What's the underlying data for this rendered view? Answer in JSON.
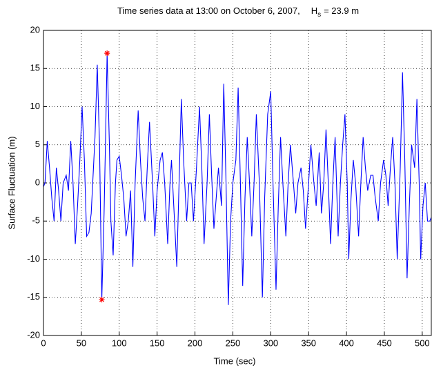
{
  "chart_data": {
    "type": "line",
    "title_main": "Time series data at 13:00 on October 6, 2007,",
    "title_symbol": "H",
    "title_subscript": "s",
    "title_value": "= 23.9 m",
    "x_label": "Time   (sec)",
    "y_label": "Surface Fluctuation   (m)",
    "xlim": [
      0,
      512
    ],
    "ylim": [
      -20,
      20
    ],
    "xticks": [
      0,
      50,
      100,
      150,
      200,
      250,
      300,
      350,
      400,
      450,
      500
    ],
    "yticks": [
      -20,
      -15,
      -10,
      -5,
      0,
      5,
      10,
      15,
      20
    ],
    "grid": true,
    "x": [
      0,
      2,
      5,
      8,
      11,
      14,
      17,
      20,
      23,
      26,
      30,
      33,
      36,
      39,
      42,
      45,
      48,
      51,
      54,
      57,
      60,
      63,
      66,
      68,
      71,
      74,
      77,
      80,
      82,
      84,
      87,
      89,
      92,
      95,
      97,
      100,
      103,
      106,
      109,
      112,
      115,
      118,
      121,
      125,
      128,
      131,
      134,
      137,
      140,
      144,
      147,
      150,
      154,
      157,
      160,
      164,
      167,
      169,
      172,
      176,
      179,
      182,
      185,
      189,
      192,
      195,
      198,
      202,
      206,
      209,
      212,
      216,
      219,
      222,
      225,
      228,
      231,
      235,
      238,
      241,
      244,
      247,
      250,
      254,
      257,
      260,
      263,
      266,
      269,
      272,
      275,
      278,
      281,
      285,
      289,
      292,
      296,
      300,
      303,
      307,
      310,
      313,
      316,
      320,
      323,
      326,
      330,
      333,
      336,
      340,
      343,
      346,
      350,
      353,
      357,
      360,
      364,
      367,
      370,
      373,
      376,
      379,
      382,
      385,
      389,
      392,
      395,
      398,
      401,
      403,
      406,
      409,
      412,
      416,
      419,
      422,
      425,
      428,
      432,
      435,
      438,
      442,
      445,
      449,
      452,
      455,
      458,
      461,
      464,
      467,
      471,
      474,
      477,
      480,
      483,
      486,
      490,
      493,
      496,
      498,
      501,
      504,
      507,
      510,
      512
    ],
    "series": [
      {
        "name": "Surface fluctuation",
        "color": "#0000ff",
        "values": [
          -0.5,
          0,
          5.5,
          2,
          -2,
          -5,
          2,
          -1,
          -5,
          0,
          1,
          -1,
          5.5,
          0,
          -8,
          -3,
          3,
          10,
          3,
          -7,
          -6.5,
          -4,
          2,
          6,
          15.5,
          5,
          -15.3,
          -4,
          6,
          17,
          5,
          -5,
          -9.5,
          0,
          3,
          3.5,
          1,
          -2,
          -7,
          -5,
          -1,
          -11,
          0,
          9.5,
          3,
          -2,
          -5,
          2,
          8,
          0,
          -7,
          -1,
          3,
          4,
          0,
          -8,
          0,
          3,
          -3,
          -11,
          0,
          11,
          3,
          -5,
          0,
          0,
          -5,
          2,
          10,
          2,
          -8,
          0,
          9,
          1,
          -6,
          -2,
          2,
          -3,
          13,
          0,
          -16,
          -5,
          0,
          3,
          12.5,
          0,
          -13.5,
          -2,
          6,
          0,
          -7,
          0,
          9,
          0,
          -15,
          -2,
          9,
          12,
          0,
          -14,
          -3,
          6,
          0,
          -7,
          0,
          5,
          0,
          -4,
          0,
          2,
          -1,
          -6,
          0,
          5,
          0,
          -3,
          4,
          -4,
          0,
          7,
          0,
          -8,
          0,
          6,
          -7,
          0,
          5,
          9,
          0,
          -10,
          -2,
          3,
          0,
          -7,
          0,
          6,
          2,
          -1,
          1,
          1,
          -2,
          -5,
          0,
          3,
          1,
          -3,
          2,
          6,
          0,
          -10,
          2,
          14.5,
          3,
          -12.5,
          -3,
          5,
          2,
          11,
          0,
          -10,
          -3,
          0,
          -5,
          -5,
          -4.5
        ]
      }
    ],
    "markers": {
      "color": "#ff0000",
      "x": [
        77,
        84
      ],
      "y": [
        -15.3,
        17
      ]
    }
  }
}
